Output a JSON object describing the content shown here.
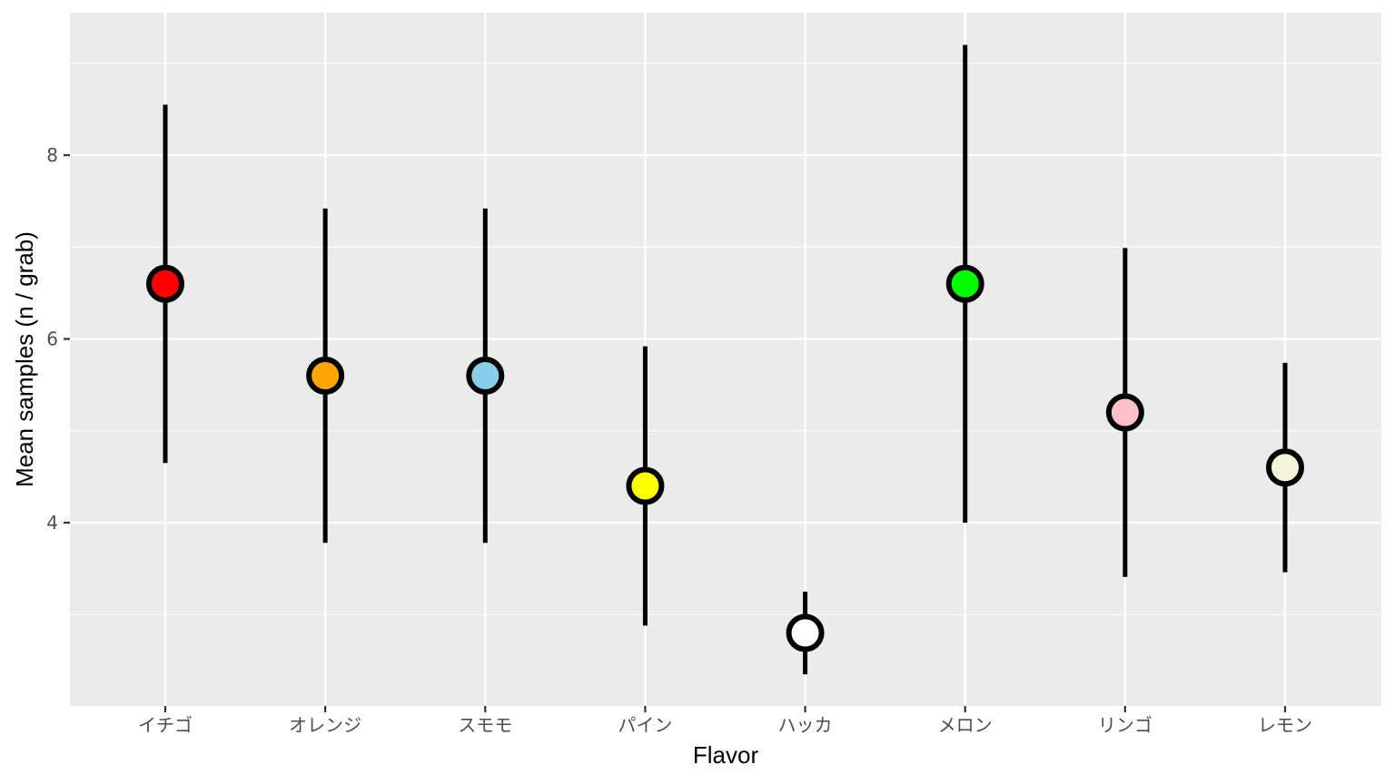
{
  "chart_data": {
    "type": "scatter",
    "subtype": "point-range",
    "title": "",
    "xlabel": "Flavor",
    "ylabel": "Mean samples (n / grab)",
    "ylim": [
      2.0,
      9.5
    ],
    "y_ticks": [
      4,
      6,
      8
    ],
    "grid": true,
    "categories": [
      "イチゴ",
      "オレンジ",
      "スモモ",
      "パイン",
      "ハッカ",
      "メロン",
      "リンゴ",
      "レモン"
    ],
    "points": [
      {
        "category": "イチゴ",
        "mean": 6.6,
        "lower": 4.65,
        "upper": 8.55,
        "fill": "#ff0000"
      },
      {
        "category": "オレンジ",
        "mean": 5.6,
        "lower": 3.78,
        "upper": 7.42,
        "fill": "#ffa500"
      },
      {
        "category": "スモモ",
        "mean": 5.6,
        "lower": 3.78,
        "upper": 7.42,
        "fill": "#87ceeb"
      },
      {
        "category": "パイン",
        "mean": 4.4,
        "lower": 2.88,
        "upper": 5.92,
        "fill": "#ffff00"
      },
      {
        "category": "ハッカ",
        "mean": 2.8,
        "lower": 2.35,
        "upper": 3.25,
        "fill": "#ffffff"
      },
      {
        "category": "メロン",
        "mean": 6.6,
        "lower": 4.0,
        "upper": 9.2,
        "fill": "#00ff00"
      },
      {
        "category": "リンゴ",
        "mean": 5.2,
        "lower": 3.41,
        "upper": 6.99,
        "fill": "#ffc0cb"
      },
      {
        "category": "レモン",
        "mean": 4.6,
        "lower": 3.46,
        "upper": 5.74,
        "fill": "#f5f5dc"
      }
    ],
    "colors": {
      "panel_background": "#ebebeb",
      "grid": "#ffffff",
      "errorbar": "#000000",
      "point_stroke": "#000000"
    }
  }
}
